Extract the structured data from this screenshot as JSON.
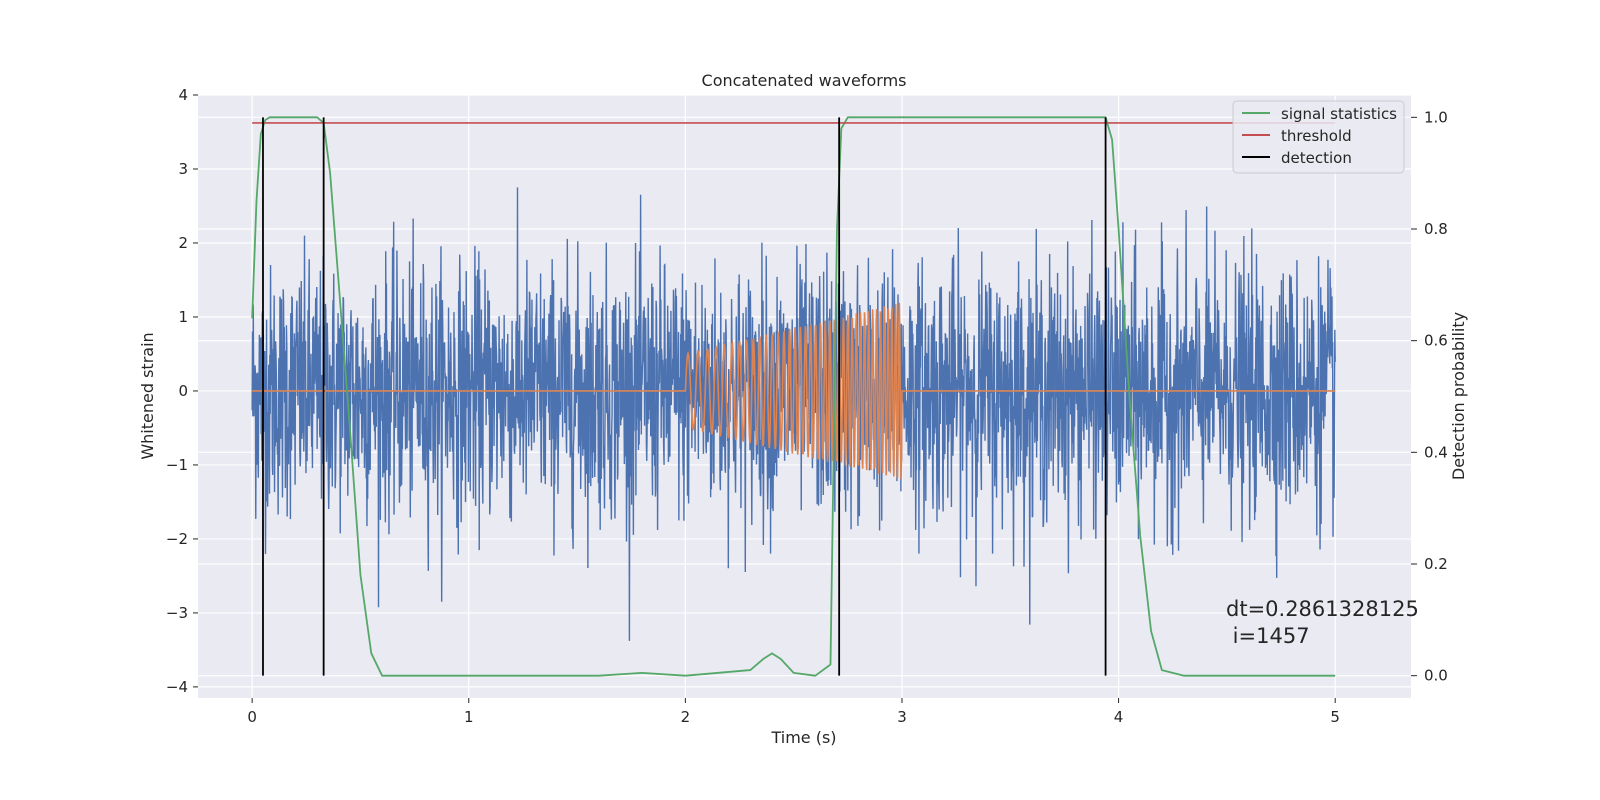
{
  "chart_data": {
    "type": "line",
    "title": "Concatenated waveforms",
    "xlabel": "Time (s)",
    "ylabel": "Whitened strain",
    "y2label": "Detection probability",
    "xlim": [
      -0.25,
      5.35
    ],
    "ylim": [
      -4.15,
      4.0
    ],
    "y2lim": [
      -0.04,
      1.04
    ],
    "xticks": [
      0,
      1,
      2,
      3,
      4,
      5
    ],
    "yticks": [
      -4,
      -3,
      -2,
      -1,
      0,
      1,
      2,
      3,
      4
    ],
    "y2ticks": [
      0.0,
      0.2,
      0.4,
      0.6,
      0.8,
      1.0
    ],
    "grid": true,
    "legend_position": "top-right",
    "legend": [
      {
        "label": "signal statistics",
        "color": "#55a868"
      },
      {
        "label": "threshold",
        "color": "#c44e52"
      },
      {
        "label": "detection",
        "color": "#000000"
      }
    ],
    "series": [
      {
        "name": "signal statistics",
        "axis": "right",
        "color": "#55a868",
        "x": [
          0.0,
          0.02,
          0.04,
          0.06,
          0.08,
          0.1,
          0.2,
          0.3,
          0.33,
          0.36,
          0.4,
          0.45,
          0.5,
          0.55,
          0.6,
          1.0,
          1.6,
          1.8,
          2.0,
          2.3,
          2.36,
          2.4,
          2.44,
          2.5,
          2.6,
          2.67,
          2.7,
          2.72,
          2.75,
          2.8,
          3.0,
          3.5,
          3.94,
          3.97,
          4.0,
          4.05,
          4.1,
          4.15,
          4.2,
          4.3,
          5.0
        ],
        "y": [
          0.64,
          0.85,
          0.97,
          0.995,
          1.0,
          1.0,
          1.0,
          1.0,
          0.99,
          0.9,
          0.7,
          0.45,
          0.18,
          0.04,
          0.0,
          0.0,
          0.0,
          0.005,
          0.0,
          0.01,
          0.03,
          0.04,
          0.03,
          0.005,
          0.0,
          0.02,
          0.8,
          0.98,
          1.0,
          1.0,
          1.0,
          1.0,
          1.0,
          0.96,
          0.8,
          0.5,
          0.25,
          0.08,
          0.01,
          0.0,
          0.0
        ]
      },
      {
        "name": "threshold",
        "axis": "right",
        "color": "#c44e52",
        "x": [
          0.0,
          5.0
        ],
        "y": [
          0.99,
          0.99
        ]
      },
      {
        "name": "detection",
        "axis": "right",
        "color": "#000000",
        "x": [
          0.05,
          0.33,
          2.71,
          3.94
        ],
        "y_range": [
          0.0,
          1.0
        ]
      },
      {
        "name": "",
        "axis": "left",
        "color": "#4c72b0",
        "x_range": [
          0.0,
          5.0
        ],
        "typical_amplitude": 0.8,
        "max_abs": 3.65
      },
      {
        "name": "",
        "axis": "left",
        "color": "#dd8452",
        "x_range": [
          0.0,
          5.0
        ],
        "chirp_start": 2.0,
        "chirp_end": 3.0,
        "amplitude_start": 0.5,
        "amplitude_end": 1.2
      }
    ],
    "annotations": {
      "line1": "dt=0.2861328125",
      "line2": " i=1457"
    }
  }
}
